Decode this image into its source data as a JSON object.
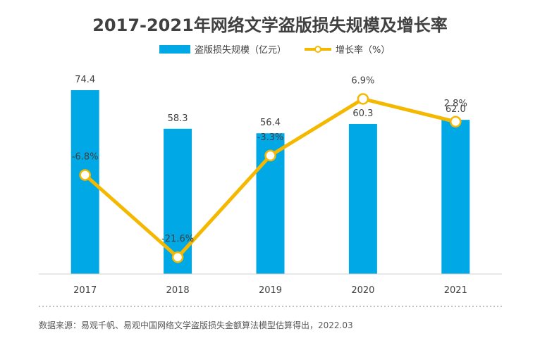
{
  "chart_data": {
    "type": "bar+line",
    "title": "2017-2021年网络文学盗版损失规模及增长率",
    "categories": [
      "2017",
      "2018",
      "2019",
      "2020",
      "2021"
    ],
    "series": [
      {
        "name": "盗版损失规模（亿元）",
        "type": "bar",
        "values": [
          74.4,
          58.3,
          56.4,
          60.3,
          62.0
        ],
        "labels": [
          "74.4",
          "58.3",
          "56.4",
          "60.3",
          "62.0"
        ],
        "color": "#00a8e6"
      },
      {
        "name": "增长率（%）",
        "type": "line",
        "values": [
          -6.8,
          -21.6,
          -3.3,
          6.9,
          2.8
        ],
        "labels": [
          "-6.8%",
          "-21.6%",
          "-3.3%",
          "6.9%",
          "2.8%"
        ],
        "color": "#f5b800"
      }
    ],
    "bar_axis_range": [
      0,
      80
    ],
    "line_axis_range": [
      -25,
      10
    ],
    "legend_position": "top-center",
    "source": "数据来源：易观千帆、易观中国网络文学盗版损失金额算法模型估算得出，2022.03"
  }
}
